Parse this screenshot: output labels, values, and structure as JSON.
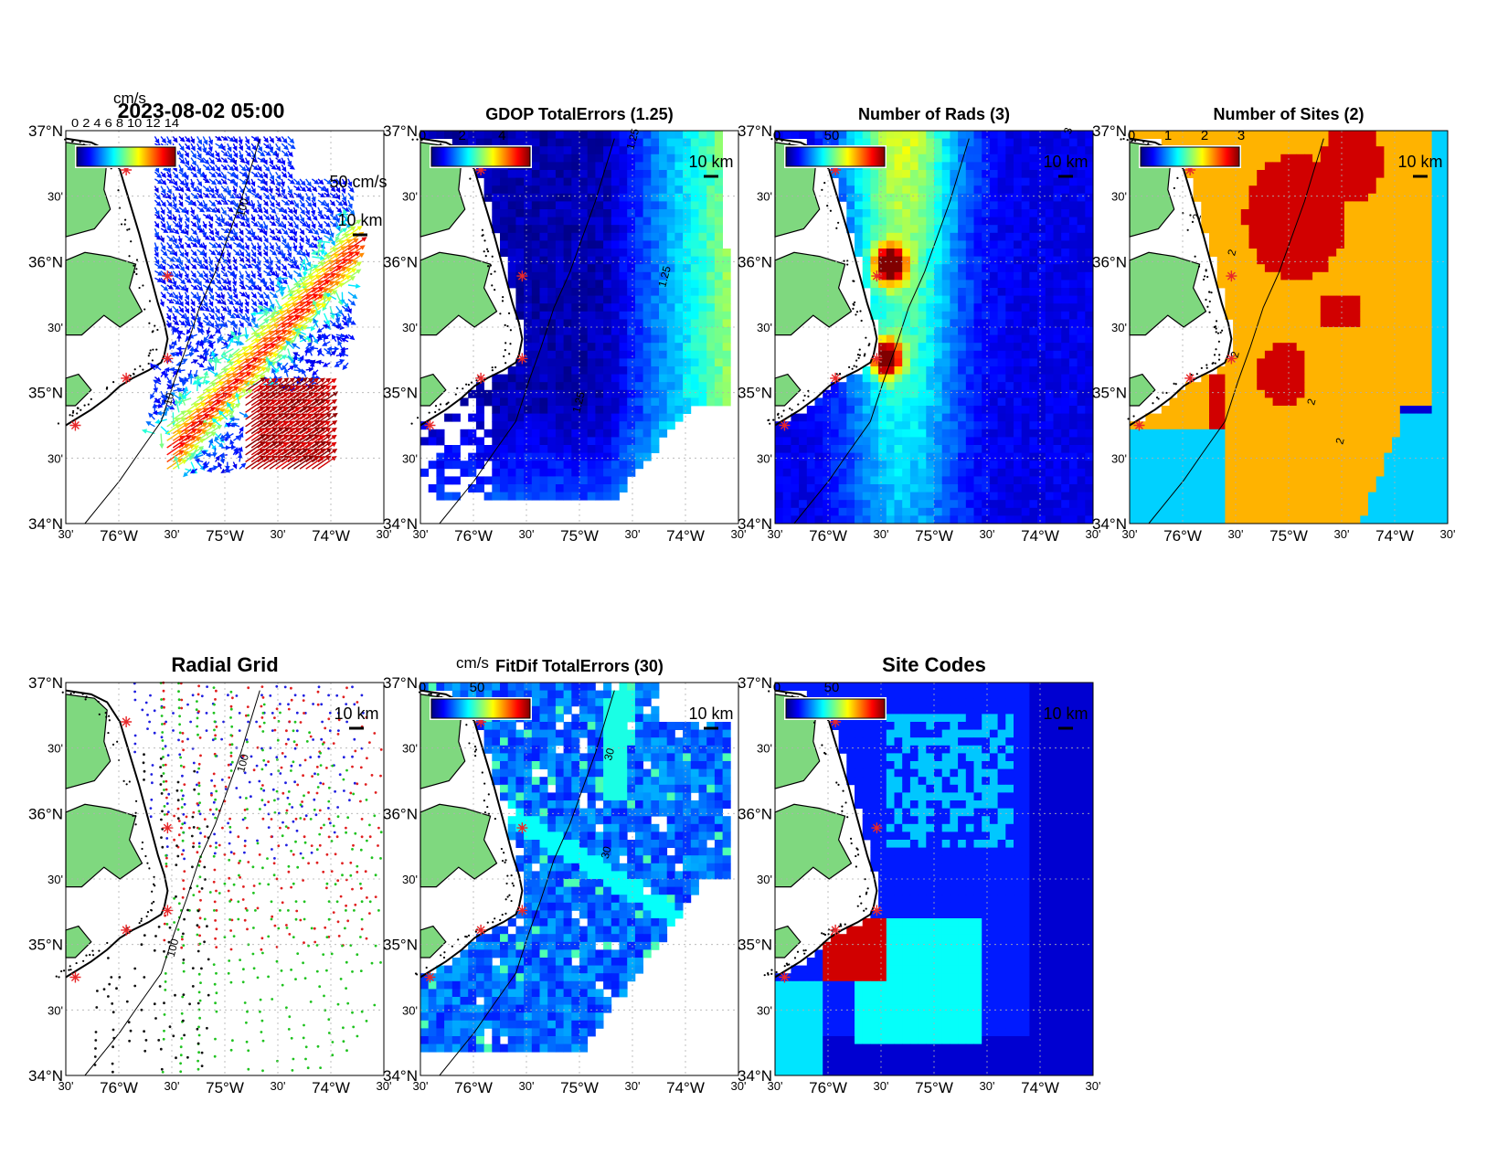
{
  "figure": {
    "timestamp": "2023-08-02 05:00",
    "colors": {
      "land": "#7fd87f",
      "coast": "#000000",
      "site_marker": "#e8282a",
      "grid": "#b0b0b0",
      "rad_site_colors": [
        "#1f1fe0",
        "#e01f1f",
        "#1fc21f",
        "#111111"
      ]
    },
    "axes": {
      "lat_ticks": [
        "37°N",
        "30'",
        "36°N",
        "30'",
        "35°N",
        "30'",
        "34°N"
      ],
      "lon_ticks": [
        "30'",
        "76°W",
        "30'",
        "75°W",
        "30'",
        "74°W",
        "30'"
      ]
    },
    "panels": [
      {
        "id": "currents",
        "title": "2023-08-02 05:00",
        "unit_label": "cm/s",
        "colorbar_ticks": [],
        "overlap_label": "0 2 4 6 8 10 12 14",
        "vector_scale_label": "50 cm/s",
        "scale_label": "10 km",
        "contour_labels": [
          "100",
          "10"
        ]
      },
      {
        "id": "gdop",
        "title": "GDOP TotalErrors (1.25)",
        "colorbar_ticks": [
          "0",
          "2",
          "4"
        ],
        "scale_label": "10 km",
        "contour_labels": [
          "1.25",
          "1.25",
          "1.25"
        ]
      },
      {
        "id": "nrads",
        "title": "Number of Rads (3)",
        "colorbar_ticks": [
          "0",
          "50"
        ],
        "scale_label": "10 km",
        "contour_labels": [
          "3"
        ]
      },
      {
        "id": "nsites",
        "title": "Number of Sites (2)",
        "colorbar_ticks": [
          "0",
          "1",
          "2",
          "3"
        ],
        "scale_label": "10 km",
        "contour_labels": [
          "2",
          "2",
          "2",
          "2",
          "2"
        ]
      },
      {
        "id": "radgrid",
        "title": "Radial Grid",
        "scale_label": "10 km",
        "contour_labels": [
          "100",
          "100"
        ]
      },
      {
        "id": "fitdif",
        "title": "FitDif TotalErrors (30)",
        "unit_label": "cm/s",
        "colorbar_ticks": [
          "0",
          "50"
        ],
        "scale_label": "10 km",
        "contour_labels": [
          "30",
          "30"
        ]
      },
      {
        "id": "sitecodes",
        "title": "Site Codes",
        "colorbar_ticks": [
          "0",
          "50"
        ],
        "scale_label": "10 km"
      }
    ]
  }
}
